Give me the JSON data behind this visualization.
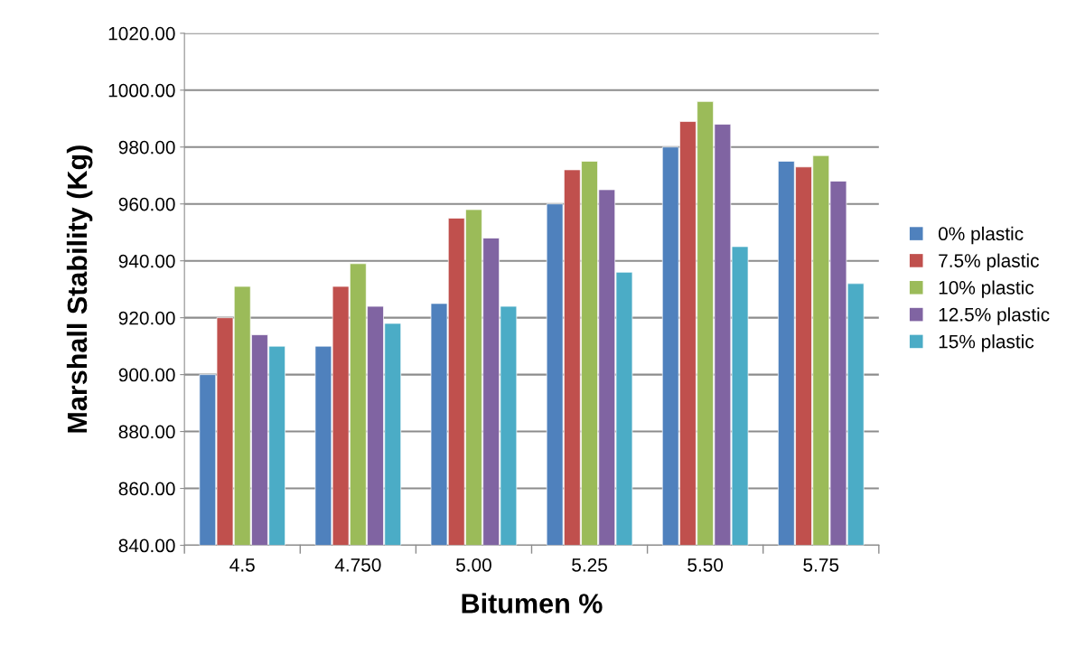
{
  "chart_data": {
    "type": "bar",
    "xlabel": "Bitumen %",
    "ylabel": "Marshall Stability (Kg)",
    "categories": [
      "4.5",
      "4.750",
      "5.00",
      "5.25",
      "5.50",
      "5.75"
    ],
    "series": [
      {
        "name": "0% plastic",
        "color": "#4f81bd",
        "values": [
          900,
          910,
          925,
          960,
          980,
          975
        ]
      },
      {
        "name": "7.5% plastic",
        "color": "#c0504d",
        "values": [
          920,
          931,
          955,
          972,
          989,
          973
        ]
      },
      {
        "name": "10% plastic",
        "color": "#9bbb59",
        "values": [
          931,
          939,
          958,
          975,
          996,
          977
        ]
      },
      {
        "name": "12.5% plastic",
        "color": "#8064a2",
        "values": [
          914,
          924,
          948,
          965,
          988,
          968
        ]
      },
      {
        "name": "15% plastic",
        "color": "#4bacc6",
        "values": [
          910,
          918,
          924,
          936,
          945,
          932
        ]
      }
    ],
    "ylim": [
      840,
      1020
    ],
    "yticks": [
      {
        "value": 840,
        "label": "840.00"
      },
      {
        "value": 860,
        "label": "860.00"
      },
      {
        "value": 880,
        "label": "880.00"
      },
      {
        "value": 900,
        "label": "900.00"
      },
      {
        "value": 920,
        "label": "920.00"
      },
      {
        "value": 940,
        "label": "940.00"
      },
      {
        "value": 960,
        "label": "960.00"
      },
      {
        "value": 980,
        "label": "980.00"
      },
      {
        "value": 1000,
        "label": "1000.00"
      },
      {
        "value": 1020,
        "label": "1020.00"
      }
    ],
    "grid": "y",
    "legend": "right"
  }
}
